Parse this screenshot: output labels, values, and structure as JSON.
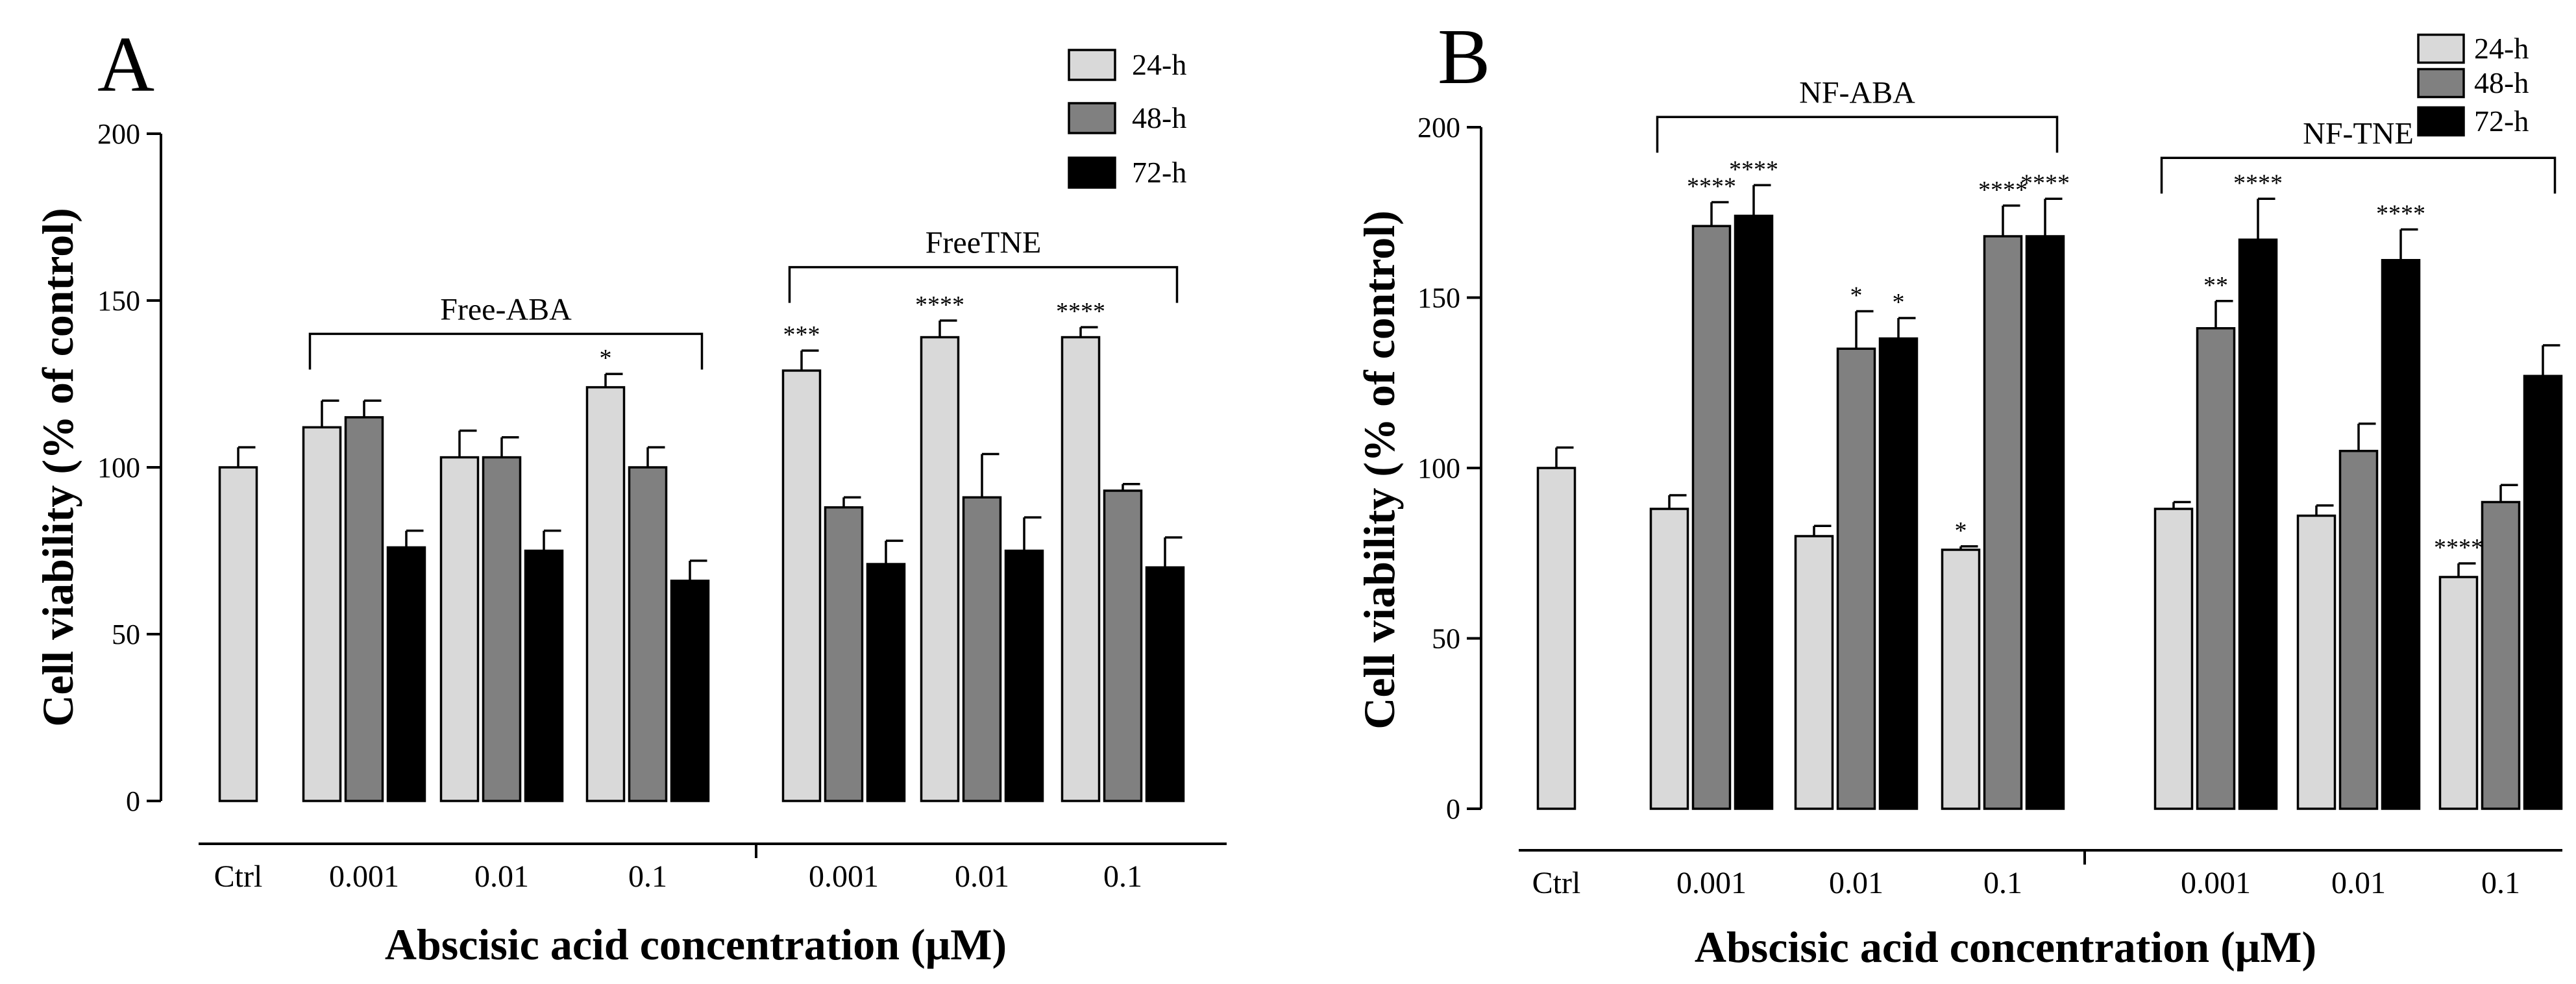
{
  "chart_data": [
    {
      "panel": "A",
      "type": "bar",
      "title": "",
      "xlabel": "Abscisic acid concentration  (μM)",
      "ylabel": "Cell viability (% of control)",
      "ylim": [
        0,
        200
      ],
      "yticks": [
        0,
        50,
        100,
        150,
        200
      ],
      "series": [
        {
          "name": "24-h",
          "color": "#d9d9d9"
        },
        {
          "name": "48-h",
          "color": "#808080"
        },
        {
          "name": "72-h",
          "color": "#000000"
        }
      ],
      "categories": [
        {
          "label": "Ctrl",
          "bars": [
            {
              "series": 0,
              "value": 100,
              "error": 6,
              "sig": ""
            }
          ]
        },
        {
          "label": "0.001",
          "bars": [
            {
              "series": 0,
              "value": 112,
              "error": 8,
              "sig": ""
            },
            {
              "series": 1,
              "value": 115,
              "error": 5,
              "sig": ""
            },
            {
              "series": 2,
              "value": 76,
              "error": 5,
              "sig": ""
            }
          ]
        },
        {
          "label": "0.01",
          "bars": [
            {
              "series": 0,
              "value": 103,
              "error": 8,
              "sig": ""
            },
            {
              "series": 1,
              "value": 103,
              "error": 6,
              "sig": ""
            },
            {
              "series": 2,
              "value": 75,
              "error": 6,
              "sig": ""
            }
          ]
        },
        {
          "label": "0.1",
          "bars": [
            {
              "series": 0,
              "value": 124,
              "error": 4,
              "sig": "*"
            },
            {
              "series": 1,
              "value": 100,
              "error": 6,
              "sig": ""
            },
            {
              "series": 2,
              "value": 66,
              "error": 6,
              "sig": ""
            }
          ]
        },
        {
          "label": "0.001",
          "bars": [
            {
              "series": 0,
              "value": 129,
              "error": 6,
              "sig": "***"
            },
            {
              "series": 1,
              "value": 88,
              "error": 3,
              "sig": ""
            },
            {
              "series": 2,
              "value": 71,
              "error": 7,
              "sig": ""
            }
          ]
        },
        {
          "label": "0.01",
          "bars": [
            {
              "series": 0,
              "value": 139,
              "error": 5,
              "sig": "****"
            },
            {
              "series": 1,
              "value": 91,
              "error": 13,
              "sig": ""
            },
            {
              "series": 2,
              "value": 75,
              "error": 10,
              "sig": ""
            }
          ]
        },
        {
          "label": "0.1",
          "bars": [
            {
              "series": 0,
              "value": 139,
              "error": 3,
              "sig": "****"
            },
            {
              "series": 1,
              "value": 93,
              "error": 2,
              "sig": ""
            },
            {
              "series": 2,
              "value": 70,
              "error": 9,
              "sig": ""
            }
          ]
        }
      ],
      "brackets": [
        {
          "label": "Free-ABA",
          "from_category": 1,
          "to_category": 3,
          "level": 140
        },
        {
          "label": "FreeTNE",
          "from_category": 4,
          "to_category": 6,
          "level": 160
        }
      ],
      "legend": [
        "24-h",
        "48-h",
        "72-h"
      ]
    },
    {
      "panel": "B",
      "type": "bar",
      "title": "",
      "xlabel": "Abscisic acid concentration  (μM)",
      "ylabel": "Cell viability (% of control)",
      "ylim": [
        0,
        200
      ],
      "yticks": [
        0,
        50,
        100,
        150,
        200
      ],
      "series": [
        {
          "name": "24-h",
          "color": "#d9d9d9"
        },
        {
          "name": "48-h",
          "color": "#808080"
        },
        {
          "name": "72-h",
          "color": "#000000"
        }
      ],
      "categories": [
        {
          "label": "Ctrl",
          "bars": [
            {
              "series": 0,
              "value": 100,
              "error": 6,
              "sig": ""
            }
          ]
        },
        {
          "label": "0.001",
          "bars": [
            {
              "series": 0,
              "value": 88,
              "error": 4,
              "sig": ""
            },
            {
              "series": 1,
              "value": 171,
              "error": 7,
              "sig": "****"
            },
            {
              "series": 2,
              "value": 174,
              "error": 9,
              "sig": "****"
            }
          ]
        },
        {
          "label": "0.01",
          "bars": [
            {
              "series": 0,
              "value": 80,
              "error": 3,
              "sig": ""
            },
            {
              "series": 1,
              "value": 135,
              "error": 11,
              "sig": "*"
            },
            {
              "series": 2,
              "value": 138,
              "error": 6,
              "sig": "*"
            }
          ]
        },
        {
          "label": "0.1",
          "bars": [
            {
              "series": 0,
              "value": 76,
              "error": 1,
              "sig": "*"
            },
            {
              "series": 1,
              "value": 168,
              "error": 9,
              "sig": "****"
            },
            {
              "series": 2,
              "value": 168,
              "error": 11,
              "sig": "****"
            }
          ]
        },
        {
          "label": "0.001",
          "bars": [
            {
              "series": 0,
              "value": 88,
              "error": 2,
              "sig": ""
            },
            {
              "series": 1,
              "value": 141,
              "error": 8,
              "sig": "**"
            },
            {
              "series": 2,
              "value": 167,
              "error": 12,
              "sig": "****"
            }
          ]
        },
        {
          "label": "0.01",
          "bars": [
            {
              "series": 0,
              "value": 86,
              "error": 3,
              "sig": ""
            },
            {
              "series": 1,
              "value": 105,
              "error": 8,
              "sig": ""
            },
            {
              "series": 2,
              "value": 161,
              "error": 9,
              "sig": "****"
            }
          ]
        },
        {
          "label": "0.1",
          "bars": [
            {
              "series": 0,
              "value": 68,
              "error": 4,
              "sig": "****"
            },
            {
              "series": 1,
              "value": 90,
              "error": 5,
              "sig": ""
            },
            {
              "series": 2,
              "value": 127,
              "error": 9,
              "sig": ""
            }
          ]
        }
      ],
      "brackets": [
        {
          "label": "NF-ABA",
          "from_category": 1,
          "to_category": 3,
          "level": 203
        },
        {
          "label": "NF-TNE",
          "from_category": 4,
          "to_category": 6,
          "level": 191
        }
      ],
      "legend": [
        "24-h",
        "48-h",
        "72-h"
      ]
    }
  ]
}
